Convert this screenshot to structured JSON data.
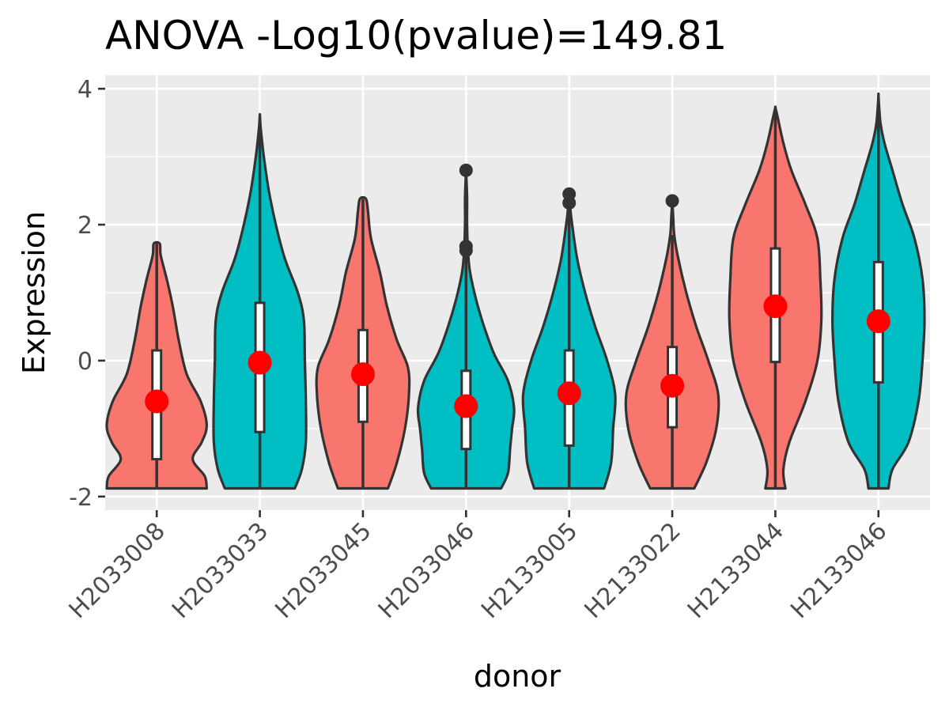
{
  "chart_data": {
    "type": "violin",
    "title": "ANOVA -Log10(pvalue)=149.81",
    "xlabel": "donor",
    "ylabel": "Expression",
    "ylim": [
      -2.2,
      4.2
    ],
    "yticks": [
      -2,
      0,
      2,
      4
    ],
    "ytick_labels": [
      "-2",
      "0",
      "2",
      "4"
    ],
    "grid": true,
    "legend": "none",
    "fill_colors": [
      "#F8766D",
      "#00BFC4"
    ],
    "categories": [
      "H2033008",
      "H2033033",
      "H2033045",
      "H2033046",
      "H2133005",
      "H2133022",
      "H2133044",
      "H2133046"
    ],
    "series": [
      {
        "category": "H2033008",
        "color": "#F8766D",
        "min": -1.88,
        "max": 1.72,
        "q1": -1.45,
        "median": -0.55,
        "q3": 0.15,
        "mean": -0.6,
        "outliers": [],
        "density": [
          [
            -1.88,
            0.5
          ],
          [
            -1.7,
            0.48
          ],
          [
            -1.45,
            0.36
          ],
          [
            -1.2,
            0.45
          ],
          [
            -0.95,
            0.5
          ],
          [
            -0.6,
            0.44
          ],
          [
            -0.2,
            0.3
          ],
          [
            0.3,
            0.22
          ],
          [
            0.8,
            0.16
          ],
          [
            1.2,
            0.1
          ],
          [
            1.55,
            0.04
          ],
          [
            1.72,
            0.03
          ]
        ]
      },
      {
        "category": "H2033033",
        "color": "#00BFC4",
        "min": -1.88,
        "max": 3.6,
        "q1": -1.05,
        "median": 0.0,
        "q3": 0.85,
        "mean": -0.03,
        "outliers": [],
        "density": [
          [
            -1.88,
            0.35
          ],
          [
            -1.6,
            0.42
          ],
          [
            -1.2,
            0.46
          ],
          [
            -0.6,
            0.46
          ],
          [
            0.0,
            0.45
          ],
          [
            0.6,
            0.44
          ],
          [
            1.0,
            0.38
          ],
          [
            1.5,
            0.25
          ],
          [
            2.0,
            0.16
          ],
          [
            2.5,
            0.09
          ],
          [
            3.0,
            0.04
          ],
          [
            3.4,
            0.01
          ],
          [
            3.6,
            0.0
          ]
        ]
      },
      {
        "category": "H2033045",
        "color": "#F8766D",
        "min": -1.88,
        "max": 2.38,
        "q1": -0.9,
        "median": -0.2,
        "q3": 0.45,
        "mean": -0.2,
        "outliers": [],
        "density": [
          [
            -1.88,
            0.25
          ],
          [
            -1.5,
            0.34
          ],
          [
            -1.0,
            0.42
          ],
          [
            -0.5,
            0.46
          ],
          [
            -0.1,
            0.45
          ],
          [
            0.3,
            0.34
          ],
          [
            0.8,
            0.24
          ],
          [
            1.3,
            0.17
          ],
          [
            1.8,
            0.08
          ],
          [
            2.2,
            0.05
          ],
          [
            2.38,
            0.03
          ]
        ]
      },
      {
        "category": "H2033046",
        "color": "#00BFC4",
        "min": -1.88,
        "max": 1.6,
        "q1": -1.3,
        "median": -0.65,
        "q3": -0.15,
        "mean": -0.67,
        "outliers": [
          1.62,
          1.68,
          2.8
        ],
        "density": [
          [
            -1.88,
            0.35
          ],
          [
            -1.65,
            0.42
          ],
          [
            -1.3,
            0.44
          ],
          [
            -1.0,
            0.46
          ],
          [
            -0.7,
            0.48
          ],
          [
            -0.3,
            0.42
          ],
          [
            0.1,
            0.28
          ],
          [
            0.5,
            0.18
          ],
          [
            0.9,
            0.1
          ],
          [
            1.3,
            0.04
          ],
          [
            1.6,
            0.02
          ],
          [
            2.0,
            0.01
          ],
          [
            2.4,
            0.01
          ],
          [
            2.8,
            0.0
          ]
        ]
      },
      {
        "category": "H2133005",
        "color": "#00BFC4",
        "min": -1.88,
        "max": 2.25,
        "q1": -1.25,
        "median": -0.5,
        "q3": 0.15,
        "mean": -0.48,
        "outliers": [
          2.32,
          2.45
        ],
        "density": [
          [
            -1.88,
            0.35
          ],
          [
            -1.5,
            0.42
          ],
          [
            -1.0,
            0.44
          ],
          [
            -0.5,
            0.46
          ],
          [
            0.0,
            0.38
          ],
          [
            0.5,
            0.26
          ],
          [
            1.0,
            0.16
          ],
          [
            1.5,
            0.08
          ],
          [
            2.0,
            0.03
          ],
          [
            2.25,
            0.01
          ],
          [
            2.45,
            0.0
          ]
        ]
      },
      {
        "category": "H2133022",
        "color": "#F8766D",
        "min": -1.88,
        "max": 1.85,
        "q1": -0.98,
        "median": -0.35,
        "q3": 0.2,
        "mean": -0.37,
        "outliers": [
          2.35
        ],
        "density": [
          [
            -1.88,
            0.22
          ],
          [
            -1.5,
            0.34
          ],
          [
            -1.0,
            0.44
          ],
          [
            -0.5,
            0.46
          ],
          [
            0.0,
            0.36
          ],
          [
            0.5,
            0.24
          ],
          [
            1.0,
            0.14
          ],
          [
            1.5,
            0.06
          ],
          [
            1.85,
            0.02
          ],
          [
            2.1,
            0.01
          ],
          [
            2.35,
            0.0
          ]
        ]
      },
      {
        "category": "H2133044",
        "color": "#F8766D",
        "min": -1.88,
        "max": 3.72,
        "q1": -0.02,
        "median": 0.85,
        "q3": 1.65,
        "mean": 0.8,
        "outliers": [],
        "density": [
          [
            -1.88,
            0.1
          ],
          [
            -1.6,
            0.08
          ],
          [
            -1.2,
            0.14
          ],
          [
            -0.6,
            0.3
          ],
          [
            0.0,
            0.42
          ],
          [
            0.6,
            0.46
          ],
          [
            1.2,
            0.45
          ],
          [
            1.8,
            0.42
          ],
          [
            2.3,
            0.3
          ],
          [
            2.8,
            0.16
          ],
          [
            3.2,
            0.08
          ],
          [
            3.6,
            0.02
          ],
          [
            3.72,
            0.0
          ]
        ]
      },
      {
        "category": "H2133046",
        "color": "#00BFC4",
        "min": -1.88,
        "max": 3.88,
        "q1": -0.32,
        "median": 0.55,
        "q3": 1.45,
        "mean": 0.58,
        "outliers": [],
        "density": [
          [
            -1.88,
            0.1
          ],
          [
            -1.6,
            0.14
          ],
          [
            -1.2,
            0.3
          ],
          [
            -0.6,
            0.4
          ],
          [
            0.0,
            0.44
          ],
          [
            0.6,
            0.46
          ],
          [
            1.2,
            0.44
          ],
          [
            1.8,
            0.36
          ],
          [
            2.3,
            0.24
          ],
          [
            2.8,
            0.14
          ],
          [
            3.2,
            0.06
          ],
          [
            3.5,
            0.02
          ],
          [
            3.88,
            0.0
          ]
        ]
      }
    ]
  }
}
